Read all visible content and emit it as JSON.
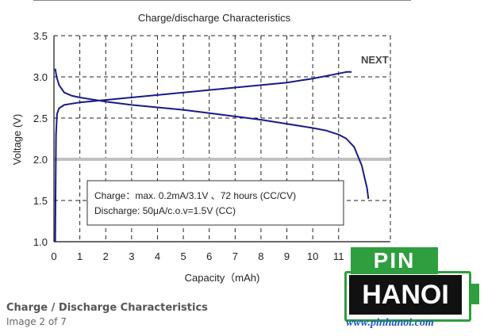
{
  "page": {
    "next_label": "NEXT",
    "caption_title": "Charge / Discharge Characteristics",
    "caption_sub": "Image 2 of 7"
  },
  "logo": {
    "pin": "PIN",
    "hanoi": "HANOI",
    "url": "www.pinhanoi.com",
    "colors": {
      "green": "#2e9e3e",
      "black": "#111111",
      "blue": "#1a55c8"
    }
  },
  "chart_data": {
    "type": "line",
    "title": "Charge/discharge Characteristics",
    "xlabel": "Capacity（mAh)",
    "ylabel": "Voltage (V)",
    "xlim": [
      0,
      13
    ],
    "ylim": [
      1.0,
      3.5
    ],
    "xticks": [
      "0",
      "1",
      "2",
      "3",
      "4",
      "5",
      "6",
      "7",
      "8",
      "9",
      "10",
      "11"
    ],
    "yticks": [
      "1.0",
      "1.5",
      "2.0",
      "2.5",
      "3.0",
      "3.5"
    ],
    "grid": "dashed",
    "reference_line": {
      "y": 2.0,
      "color": "#c0c0c0"
    },
    "line_color": "#1a1a8c",
    "annotation": [
      "Charge：max. 0.2mA/3.1V 、72 hours (CC/CV)",
      "Discharge: 50μA/c.o.v=1.5V (CC)"
    ],
    "series": [
      {
        "curve": "charge",
        "x": [
          0.05,
          0.08,
          0.12,
          0.2,
          0.4,
          1.0,
          2.0,
          3.0,
          4.0,
          5.0,
          6.0,
          7.0,
          8.0,
          9.0,
          10.0,
          10.5,
          11.0,
          11.3,
          11.5
        ],
        "y": [
          1.0,
          2.3,
          2.55,
          2.62,
          2.66,
          2.69,
          2.72,
          2.75,
          2.78,
          2.81,
          2.84,
          2.87,
          2.9,
          2.93,
          2.98,
          3.01,
          3.04,
          3.06,
          3.06
        ]
      },
      {
        "curve": "discharge",
        "x": [
          0.05,
          0.1,
          0.2,
          0.4,
          0.7,
          1.0,
          2.0,
          3.0,
          4.0,
          5.0,
          6.0,
          7.0,
          8.0,
          9.0,
          10.0,
          10.5,
          11.0,
          11.3,
          11.6,
          11.9,
          12.0,
          12.1,
          12.15
        ],
        "y": [
          3.1,
          3.0,
          2.9,
          2.81,
          2.77,
          2.75,
          2.7,
          2.66,
          2.63,
          2.6,
          2.56,
          2.52,
          2.48,
          2.43,
          2.38,
          2.35,
          2.3,
          2.25,
          2.15,
          1.92,
          1.78,
          1.65,
          1.52
        ]
      }
    ]
  }
}
